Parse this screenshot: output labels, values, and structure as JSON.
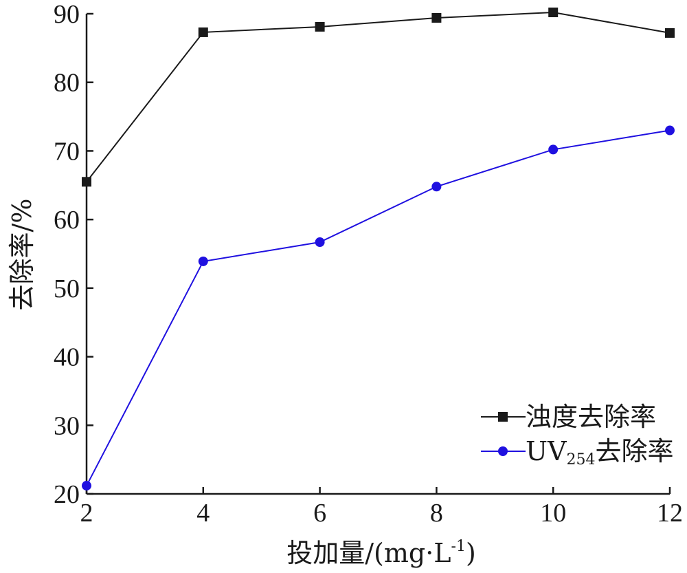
{
  "chart_data": {
    "type": "line",
    "x": [
      2,
      4,
      6,
      8,
      10,
      12
    ],
    "xlim": [
      2,
      12
    ],
    "ylim": [
      20,
      90
    ],
    "xticks": [
      2,
      4,
      6,
      8,
      10,
      12
    ],
    "yticks": [
      20,
      30,
      40,
      50,
      60,
      70,
      80,
      90
    ],
    "xlabel": "投加量/(mg·L",
    "xlabel_sup": "-1",
    "xlabel_end": ")",
    "ylabel": "去除率/%",
    "grid": false,
    "legend_position": "bottom-right",
    "series": [
      {
        "name": "浊度去除率",
        "label_main": "浊度去除率",
        "label_sub": "",
        "label_tail": "",
        "color": "#1a1a1a",
        "marker": "square",
        "values": [
          65.5,
          87.3,
          88.1,
          89.4,
          90.2,
          87.2
        ]
      },
      {
        "name": "UV254去除率",
        "label_main": "UV",
        "label_sub": "254",
        "label_tail": "去除率",
        "color": "#1f10e0",
        "marker": "circle",
        "values": [
          21.2,
          53.9,
          56.7,
          64.8,
          70.2,
          73.0
        ]
      }
    ]
  }
}
